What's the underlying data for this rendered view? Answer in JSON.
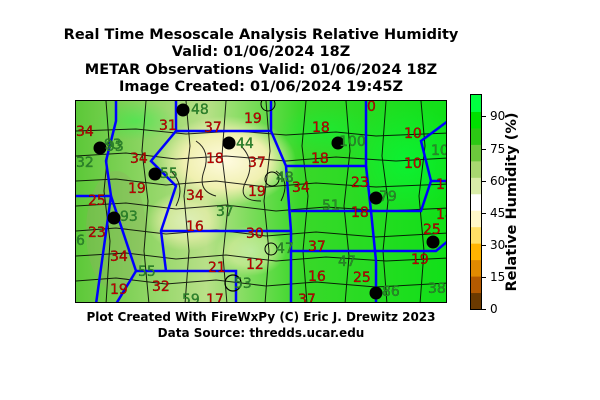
{
  "titles": {
    "line1": "Real Time Mesoscale Analysis Relative Humidity",
    "line2": "Valid: 01/06/2024 18Z",
    "line3": "METAR Observations Valid: 01/06/2024 18Z",
    "line4": "Image Created: 01/06/2024 19:45Z"
  },
  "colorbar": {
    "label": "Relative Humidity (%)",
    "ticks": [
      "0",
      "15",
      "30",
      "45",
      "60",
      "75",
      "90"
    ],
    "range": [
      0,
      100
    ],
    "colors": [
      "#6b3a00",
      "#b45a00",
      "#e08a00",
      "#ffb400",
      "#ffe066",
      "#fff8c8",
      "#ffffff",
      "#d8eca8",
      "#a8d870",
      "#6cc83c",
      "#2cc814",
      "#00e000",
      "#00ff40"
    ]
  },
  "footer": {
    "credit": "Plot Created With FireWxPy (C) Eric J. Drewitz 2023",
    "source": "Data Source: thredds.ucar.edu"
  },
  "observations": [
    {
      "value": "48",
      "color": "#2e8b2e"
    },
    {
      "value": "93",
      "color": "#2e8b2e"
    },
    {
      "value": "0",
      "color": "#cc0000"
    },
    {
      "value": "34",
      "color": "#cc0000"
    },
    {
      "value": "31",
      "color": "#cc0000"
    },
    {
      "value": "37",
      "color": "#cc0000"
    },
    {
      "value": "19",
      "color": "#cc0000"
    },
    {
      "value": "18",
      "color": "#cc0000"
    },
    {
      "value": "100",
      "color": "#2e8b2e"
    },
    {
      "value": "10",
      "color": "#cc0000"
    },
    {
      "value": "32",
      "color": "#2e8b2e"
    },
    {
      "value": "93",
      "color": "#2e8b2e"
    },
    {
      "value": "34",
      "color": "#cc0000"
    },
    {
      "value": "44",
      "color": "#2e8b2e"
    },
    {
      "value": "18",
      "color": "#cc0000"
    },
    {
      "value": "37",
      "color": "#cc0000"
    },
    {
      "value": "18",
      "color": "#cc0000"
    },
    {
      "value": "10",
      "color": "#cc0000"
    },
    {
      "value": "10",
      "color": "#2e8b2e"
    },
    {
      "value": "19",
      "color": "#cc0000"
    },
    {
      "value": "55",
      "color": "#2e8b2e"
    },
    {
      "value": "48",
      "color": "#2e8b2e"
    },
    {
      "value": "23",
      "color": "#cc0000"
    },
    {
      "value": "19",
      "color": "#cc0000"
    },
    {
      "value": "25",
      "color": "#cc0000"
    },
    {
      "value": "34",
      "color": "#cc0000"
    },
    {
      "value": "19",
      "color": "#cc0000"
    },
    {
      "value": "34",
      "color": "#cc0000"
    },
    {
      "value": "79",
      "color": "#2e8b2e"
    },
    {
      "value": "93",
      "color": "#2e8b2e"
    },
    {
      "value": "37",
      "color": "#2e8b2e"
    },
    {
      "value": "51",
      "color": "#2e8b2e"
    },
    {
      "value": "18",
      "color": "#cc0000"
    },
    {
      "value": "18",
      "color": "#cc0000"
    },
    {
      "value": "6",
      "color": "#2e8b2e"
    },
    {
      "value": "23",
      "color": "#cc0000"
    },
    {
      "value": "16",
      "color": "#cc0000"
    },
    {
      "value": "30",
      "color": "#cc0000"
    },
    {
      "value": "47",
      "color": "#2e8b2e"
    },
    {
      "value": "37",
      "color": "#cc0000"
    },
    {
      "value": "25",
      "color": "#cc0000"
    },
    {
      "value": "34",
      "color": "#cc0000"
    },
    {
      "value": "21",
      "color": "#cc0000"
    },
    {
      "value": "12",
      "color": "#cc0000"
    },
    {
      "value": "47",
      "color": "#2e8b2e"
    },
    {
      "value": "19",
      "color": "#cc0000"
    },
    {
      "value": "55",
      "color": "#2e8b2e"
    },
    {
      "value": "53",
      "color": "#2e8b2e"
    },
    {
      "value": "16",
      "color": "#cc0000"
    },
    {
      "value": "25",
      "color": "#cc0000"
    },
    {
      "value": "19",
      "color": "#cc0000"
    },
    {
      "value": "32",
      "color": "#cc0000"
    },
    {
      "value": "59",
      "color": "#2e8b2e"
    },
    {
      "value": "17",
      "color": "#cc0000"
    },
    {
      "value": "37",
      "color": "#cc0000"
    },
    {
      "value": "86",
      "color": "#2e8b2e"
    },
    {
      "value": "38",
      "color": "#2e8b2e"
    }
  ]
}
